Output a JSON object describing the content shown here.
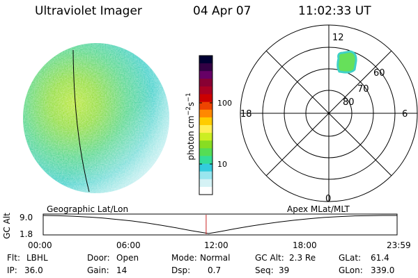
{
  "header": {
    "instrument": "Ultraviolet Imager",
    "date": "04 Apr 07",
    "time": "11:02:33 UT"
  },
  "colorbar": {
    "label": "photon cm^-2 s^-1",
    "ticks": [
      "100",
      "10"
    ],
    "colors": [
      "#000033",
      "#330044",
      "#660066",
      "#880033",
      "#aa0022",
      "#cc0000",
      "#ee4400",
      "#ff8800",
      "#ffcc00",
      "#ffee55",
      "#ccee22",
      "#88dd22",
      "#55dd55",
      "#33dd99",
      "#33ccdd",
      "#99e6ee",
      "#d5f2f5",
      "#ffffff"
    ]
  },
  "polar_plot": {
    "mlt_labels": {
      "top": "12",
      "right": "6",
      "bottom": "0",
      "left": "18"
    },
    "lat_labels": [
      "60",
      "70",
      "80"
    ]
  },
  "timeline": {
    "left_label": "Geographic Lat/Lon",
    "right_label": "Apex  MLat/MLT",
    "ylabel": "GC Alt",
    "y_ticks": [
      "9.0",
      "1.8"
    ],
    "x_ticks": [
      "00:00",
      "06:00",
      "12:00",
      "18:00",
      "23:59"
    ]
  },
  "chart_data": {
    "type": "line",
    "title": "",
    "xlabel": "",
    "ylabel": "GC Alt",
    "xlim_hours": [
      0,
      23.98
    ],
    "ylim": [
      1.8,
      9.0
    ],
    "x": [
      0,
      1,
      2,
      3,
      4,
      5,
      6,
      7,
      8,
      9,
      10,
      11,
      11.2,
      12,
      13,
      14,
      15,
      16,
      17,
      18,
      19,
      20,
      21,
      22,
      23,
      23.98
    ],
    "y": [
      9.0,
      8.9,
      8.7,
      8.4,
      8.0,
      7.4,
      6.8,
      6.0,
      5.1,
      4.1,
      3.0,
      2.0,
      1.8,
      2.6,
      3.7,
      4.7,
      5.6,
      6.4,
      7.1,
      7.7,
      8.2,
      8.5,
      8.8,
      8.9,
      9.0,
      9.0
    ],
    "current_time_hours": 11.04
  },
  "footer": {
    "rows": [
      [
        {
          "key": "Flt:",
          "value": "LBHL"
        },
        {
          "key": "Door:",
          "value": "Open"
        },
        {
          "key": "Mode:",
          "value": "Normal"
        },
        {
          "key": "GC Alt:",
          "value": "2.3 Re"
        },
        {
          "key": "GLat:",
          "value": "61.4"
        }
      ],
      [
        {
          "key": "IP:",
          "value": "36.0"
        },
        {
          "key": "Gain:",
          "value": "14"
        },
        {
          "key": "Dsp:",
          "value": "0.7"
        },
        {
          "key": "Seq:",
          "value": "39"
        },
        {
          "key": "GLon:",
          "value": "339.0"
        }
      ]
    ]
  }
}
